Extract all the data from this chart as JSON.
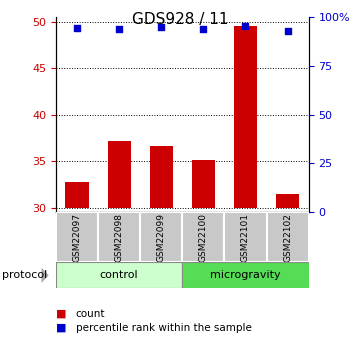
{
  "title": "GDS928 / 11",
  "samples": [
    "GSM22097",
    "GSM22098",
    "GSM22099",
    "GSM22100",
    "GSM22101",
    "GSM22102"
  ],
  "bar_values": [
    32.7,
    37.2,
    36.6,
    35.1,
    49.6,
    31.5
  ],
  "percentile_values": [
    49.3,
    49.2,
    49.5,
    49.2,
    49.6,
    49.0
  ],
  "bar_bottom": 30,
  "ylim_left": [
    29.5,
    50.5
  ],
  "ylim_right": [
    0,
    100
  ],
  "yticks_left": [
    30,
    35,
    40,
    45,
    50
  ],
  "yticks_right": [
    0,
    25,
    50,
    75,
    100
  ],
  "ytick_labels_right": [
    "0",
    "25",
    "50",
    "75",
    "100%"
  ],
  "bar_color": "#cc0000",
  "dot_color": "#0000cc",
  "groups": [
    {
      "label": "control",
      "indices": [
        0,
        1,
        2
      ],
      "color": "#ccffcc"
    },
    {
      "label": "microgravity",
      "indices": [
        3,
        4,
        5
      ],
      "color": "#55dd55"
    }
  ],
  "protocol_label": "protocol",
  "legend_items": [
    {
      "color": "#cc0000",
      "label": "count"
    },
    {
      "color": "#0000cc",
      "label": "percentile rank within the sample"
    }
  ],
  "grid_style": "dotted",
  "left_tick_color": "#cc0000",
  "right_tick_color": "#0000cc",
  "sample_box_color": "#c8c8c8",
  "title_fontsize": 11,
  "tick_fontsize": 8,
  "label_fontsize": 8
}
